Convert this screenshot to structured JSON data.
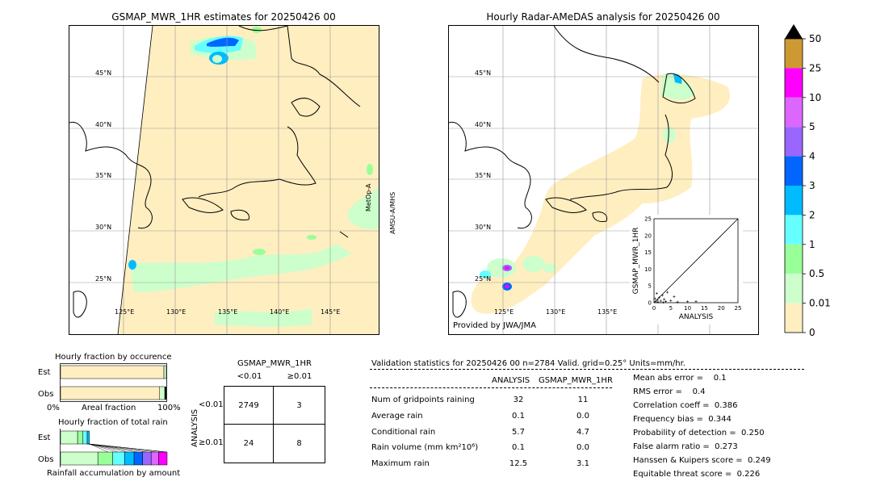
{
  "left_map": {
    "title": "GSMAP_MWR_1HR estimates for 20250426 00",
    "side_label_1": "MetOp-A",
    "side_label_2": "AMSU-A/MHS",
    "lat_labels": [
      "45°N",
      "40°N",
      "35°N",
      "30°N",
      "25°N"
    ],
    "lon_labels": [
      "125°E",
      "130°E",
      "135°E",
      "140°E",
      "145°E"
    ]
  },
  "right_map": {
    "title": "Hourly Radar-AMeDAS analysis for 20250426 00",
    "credit": "Provided by JWA/JMA",
    "lat_labels": [
      "45°N",
      "40°N",
      "35°N",
      "30°N",
      "25°N"
    ],
    "lon_labels": [
      "125°E",
      "130°E",
      "135°E"
    ]
  },
  "colorbar": {
    "labels": [
      "50",
      "25",
      "10",
      "5",
      "4",
      "3",
      "2",
      "1",
      "0.5",
      "0.01",
      "0"
    ],
    "colors": [
      "#cc9933",
      "#ff00ff",
      "#dd66ff",
      "#9966ff",
      "#0066ff",
      "#00bbff",
      "#66ffff",
      "#99ff99",
      "#ccffcc",
      "#ffeec0"
    ],
    "overflow_color": "#000000"
  },
  "fraction_occurrence": {
    "title": "Hourly fraction by occurence",
    "row_labels": [
      "Est",
      "Obs"
    ],
    "axis_left": "0%",
    "axis_mid": "Areal fraction",
    "axis_right": "100%",
    "est_fraction": 0.97,
    "obs_fraction": 0.93
  },
  "fraction_total": {
    "title": "Hourly fraction of total rain",
    "row_labels": [
      "Est",
      "Obs"
    ],
    "footer": "Rainfall accumulation by amount"
  },
  "contingency": {
    "title": "GSMAP_MWR_1HR",
    "col_labels": [
      "<0.01",
      "≥0.01"
    ],
    "row_axis": "ANALYSIS",
    "row_labels": [
      "<0.01",
      "≥0.01"
    ],
    "cells": [
      [
        "2749",
        "3"
      ],
      [
        "24",
        "8"
      ]
    ]
  },
  "validation": {
    "header": "Validation statistics for 20250426 00  n=2784 Valid. grid=0.25° Units=mm/hr.",
    "col_analysis": "ANALYSIS",
    "col_gsmap": "GSMAP_MWR_1HR",
    "rows": [
      {
        "label": "Num of gridpoints raining",
        "analysis": "32",
        "gsmap": "11"
      },
      {
        "label": "Average rain",
        "analysis": "0.1",
        "gsmap": "0.0"
      },
      {
        "label": "Conditional rain",
        "analysis": "5.7",
        "gsmap": "4.7"
      },
      {
        "label": "Rain volume (mm km²10⁶)",
        "analysis": "0.1",
        "gsmap": "0.0"
      },
      {
        "label": "Maximum rain",
        "analysis": "12.5",
        "gsmap": "3.1"
      }
    ],
    "scores": [
      "Mean abs error =    0.1",
      "RMS error =    0.4",
      "Correlation coeff =  0.386",
      "Frequency bias =  0.344",
      "Probability of detection =  0.250",
      "False alarm ratio =  0.273",
      "Hanssen & Kuipers score =  0.249",
      "Equitable threat score =  0.226"
    ]
  },
  "chart_data": {
    "type": "scatter",
    "xlabel": "ANALYSIS",
    "ylabel": "GSMAP_MWR_1HR",
    "xlim": [
      0,
      25
    ],
    "ylim": [
      0,
      25
    ],
    "ticks": [
      "0",
      "5",
      "10",
      "15",
      "20",
      "25"
    ],
    "points": [
      [
        0.5,
        0.3
      ],
      [
        1,
        0.8
      ],
      [
        1.5,
        1.5
      ],
      [
        2,
        0.5
      ],
      [
        2.5,
        2.2
      ],
      [
        3,
        1.0
      ],
      [
        0.8,
        2.8
      ],
      [
        3.5,
        0.4
      ],
      [
        5,
        0.6
      ],
      [
        4,
        3.1
      ],
      [
        1.2,
        0.2
      ],
      [
        0.3,
        1.2
      ],
      [
        7,
        0.2
      ],
      [
        10,
        0.3
      ],
      [
        12.5,
        0.4
      ],
      [
        2.8,
        0.1
      ],
      [
        6,
        1.8
      ]
    ]
  }
}
